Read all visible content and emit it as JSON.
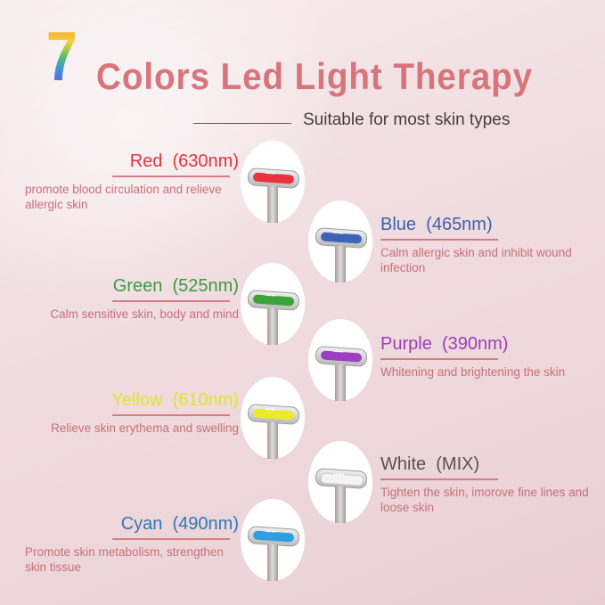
{
  "header": {
    "number": "7",
    "title": "Colors Led Light Therapy",
    "subtitle": "Suitable for most skin types"
  },
  "colors": [
    {
      "name": "Red",
      "wavelength": "(630nm)",
      "description": "promote blood circulation and relieve allergic skin",
      "color": "#e0343f",
      "led": "#e8333c"
    },
    {
      "name": "Blue",
      "wavelength": "(465nm)",
      "description": "Calm allergic skin and inhibit wound infection",
      "color": "#3d5fa8",
      "led": "#3e63b8"
    },
    {
      "name": "Green",
      "wavelength": "(525nm)",
      "description": "Calm sensitive skin, body and mind",
      "color": "#3f9a3b",
      "led": "#3ea23a"
    },
    {
      "name": "Purple",
      "wavelength": "(390nm)",
      "description": "Whitening and brightening the skin",
      "color": "#9a3fb5",
      "led": "#9b3fc2"
    },
    {
      "name": "Yellow",
      "wavelength": "(610nm)",
      "description": "Relieve skin erythema and swelling",
      "color": "#e6e22c",
      "led": "#ecea2a"
    },
    {
      "name": "White",
      "wavelength": "(MIX)",
      "description": "Tighten the skin, imorove fine lines and loose skin",
      "color": "#5a5050",
      "led": "#f4f4f4"
    },
    {
      "name": "Cyan",
      "wavelength": "(490nm)",
      "description": "Promote skin metabolism, strengthen skin tissue",
      "color": "#2e78b8",
      "led": "#2e9fe0"
    }
  ]
}
